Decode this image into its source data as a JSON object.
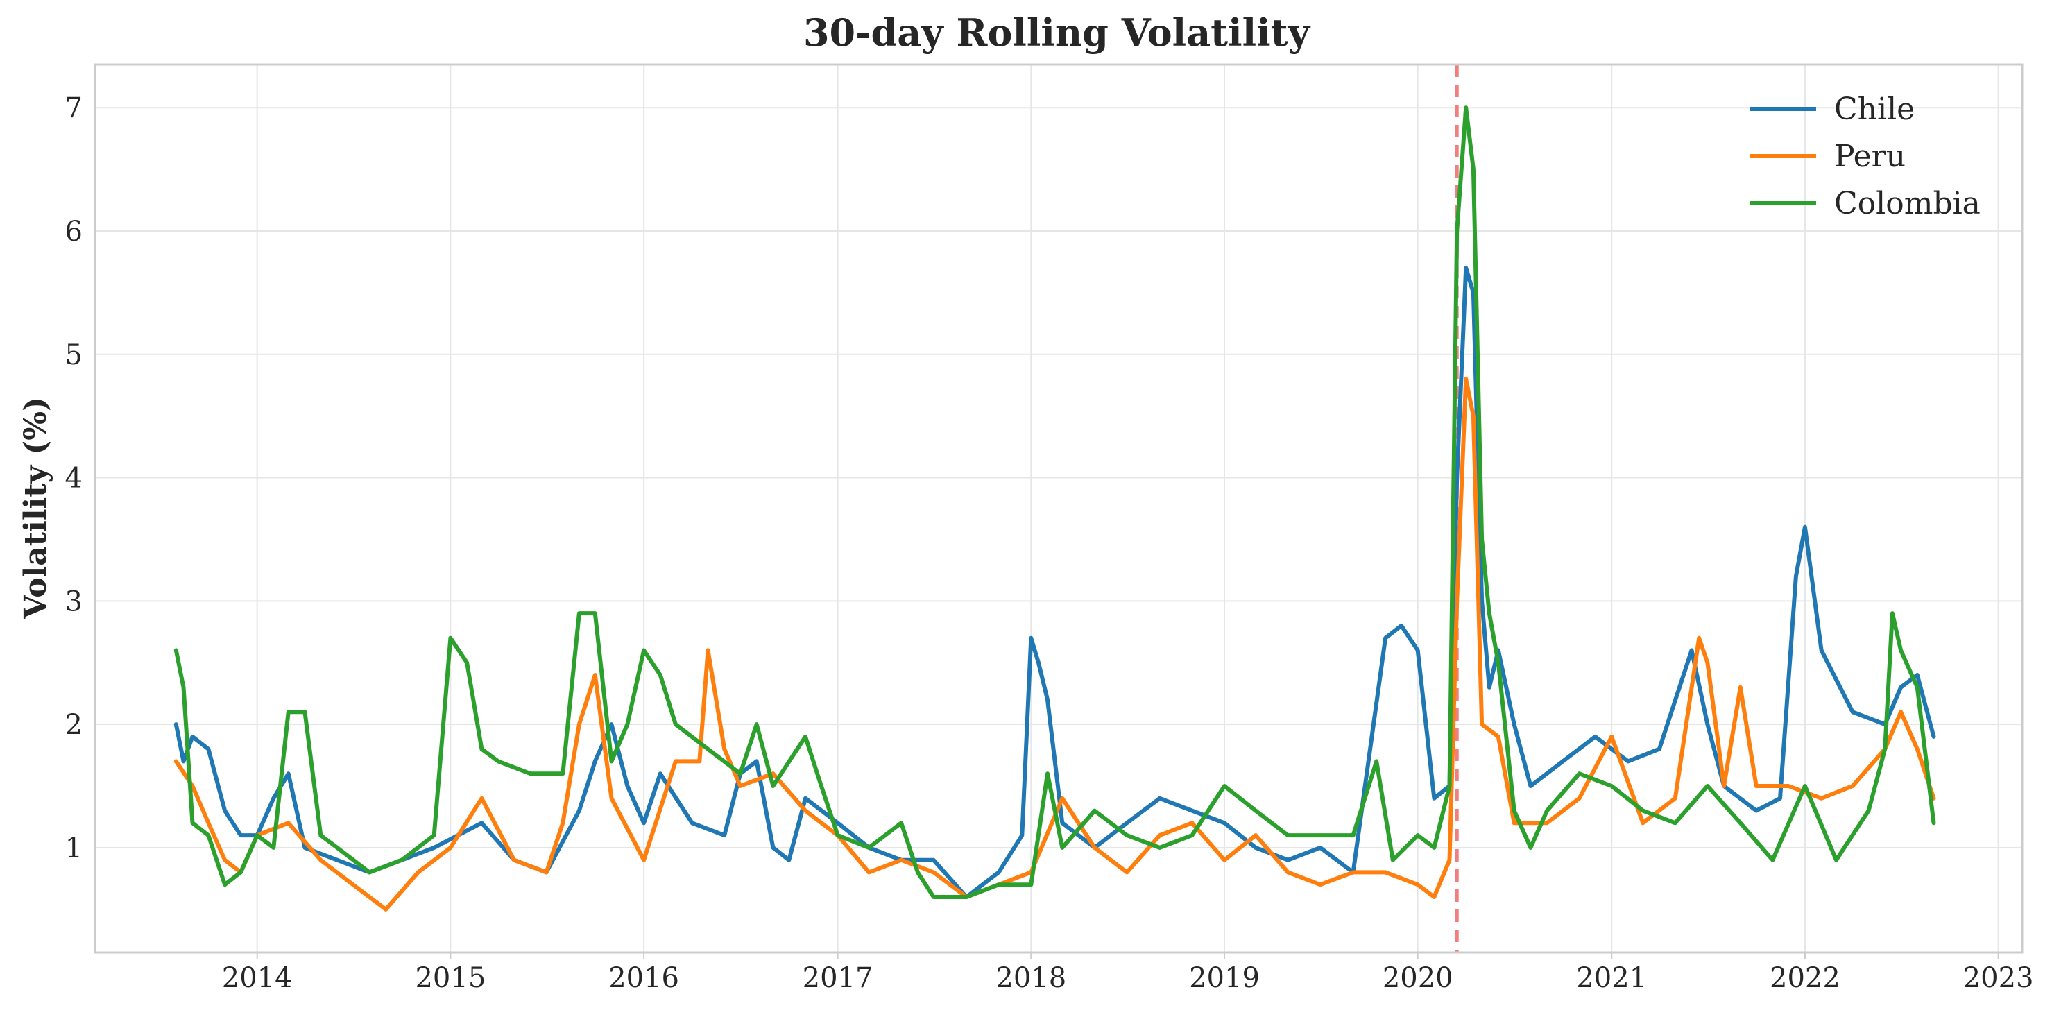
{
  "chart_data": {
    "type": "line",
    "title": "30-day Rolling Volatility",
    "xlabel": "",
    "ylabel": "Volatility (%)",
    "xlim": [
      "2013-03-01",
      "2023-02-15"
    ],
    "ylim": [
      0.15,
      7.35
    ],
    "x_ticks": [
      "2014",
      "2015",
      "2016",
      "2017",
      "2018",
      "2019",
      "2020",
      "2021",
      "2022",
      "2023"
    ],
    "y_ticks": [
      1,
      2,
      3,
      4,
      5,
      6,
      7
    ],
    "grid": true,
    "legend_position": "top-right",
    "annotations": [
      {
        "type": "vertical-dashed-line",
        "x": "2020-03-15",
        "color": "#f08080"
      }
    ],
    "series": [
      {
        "name": "Chile",
        "color": "#1f77b4",
        "x": [
          "2013-08-01",
          "2013-08-15",
          "2013-09-01",
          "2013-10-01",
          "2013-11-01",
          "2013-12-01",
          "2014-01-01",
          "2014-02-01",
          "2014-03-01",
          "2014-04-01",
          "2014-06-01",
          "2014-08-01",
          "2014-10-01",
          "2014-12-01",
          "2015-01-15",
          "2015-03-01",
          "2015-05-01",
          "2015-07-01",
          "2015-09-01",
          "2015-10-01",
          "2015-11-01",
          "2015-12-01",
          "2016-01-01",
          "2016-02-01",
          "2016-04-01",
          "2016-06-01",
          "2016-07-01",
          "2016-08-01",
          "2016-09-01",
          "2016-10-01",
          "2016-11-01",
          "2017-01-01",
          "2017-03-01",
          "2017-05-01",
          "2017-07-01",
          "2017-09-01",
          "2017-11-01",
          "2017-12-15",
          "2018-01-01",
          "2018-01-15",
          "2018-02-01",
          "2018-03-01",
          "2018-05-01",
          "2018-07-01",
          "2018-09-01",
          "2018-11-01",
          "2019-01-01",
          "2019-03-01",
          "2019-05-01",
          "2019-07-01",
          "2019-09-01",
          "2019-11-01",
          "2019-12-01",
          "2020-01-01",
          "2020-02-01",
          "2020-03-01",
          "2020-03-15",
          "2020-04-01",
          "2020-04-15",
          "2020-05-01",
          "2020-05-15",
          "2020-06-01",
          "2020-07-01",
          "2020-08-01",
          "2020-10-01",
          "2020-12-01",
          "2021-02-01",
          "2021-04-01",
          "2021-06-01",
          "2021-07-01",
          "2021-08-01",
          "2021-10-01",
          "2021-11-15",
          "2021-12-15",
          "2022-01-01",
          "2022-02-01",
          "2022-04-01",
          "2022-06-01",
          "2022-07-01",
          "2022-08-01",
          "2022-09-01"
        ],
        "y": [
          2.0,
          1.7,
          1.9,
          1.8,
          1.3,
          1.1,
          1.1,
          1.4,
          1.6,
          1.0,
          0.9,
          0.8,
          0.9,
          1.0,
          1.1,
          1.2,
          0.9,
          0.8,
          1.3,
          1.7,
          2.0,
          1.5,
          1.2,
          1.6,
          1.2,
          1.1,
          1.6,
          1.7,
          1.0,
          0.9,
          1.4,
          1.2,
          1.0,
          0.9,
          0.9,
          0.6,
          0.8,
          1.1,
          2.7,
          2.5,
          2.2,
          1.2,
          1.0,
          1.2,
          1.4,
          1.3,
          1.2,
          1.0,
          0.9,
          1.0,
          0.8,
          2.7,
          2.8,
          2.6,
          1.4,
          1.5,
          4.0,
          5.7,
          5.5,
          3.0,
          2.3,
          2.6,
          2.0,
          1.5,
          1.7,
          1.9,
          1.7,
          1.8,
          2.6,
          2.0,
          1.5,
          1.3,
          1.4,
          3.2,
          3.6,
          2.6,
          2.1,
          2.0,
          2.3,
          2.4,
          1.9
        ]
      },
      {
        "name": "Peru",
        "color": "#ff7f0e",
        "x": [
          "2013-08-01",
          "2013-09-01",
          "2013-10-01",
          "2013-11-01",
          "2013-12-01",
          "2014-01-01",
          "2014-03-01",
          "2014-05-01",
          "2014-07-01",
          "2014-09-01",
          "2014-11-01",
          "2015-01-01",
          "2015-03-01",
          "2015-05-01",
          "2015-07-01",
          "2015-08-01",
          "2015-09-01",
          "2015-10-01",
          "2015-11-01",
          "2016-01-01",
          "2016-03-01",
          "2016-04-15",
          "2016-05-01",
          "2016-06-01",
          "2016-07-01",
          "2016-09-01",
          "2016-11-01",
          "2017-01-01",
          "2017-03-01",
          "2017-05-01",
          "2017-07-01",
          "2017-09-01",
          "2017-11-01",
          "2018-01-01",
          "2018-03-01",
          "2018-05-01",
          "2018-07-01",
          "2018-09-01",
          "2018-11-01",
          "2019-01-01",
          "2019-03-01",
          "2019-05-01",
          "2019-07-01",
          "2019-09-01",
          "2019-11-01",
          "2020-01-01",
          "2020-02-01",
          "2020-03-01",
          "2020-03-15",
          "2020-04-01",
          "2020-04-15",
          "2020-05-01",
          "2020-06-01",
          "2020-07-01",
          "2020-09-01",
          "2020-11-01",
          "2021-01-01",
          "2021-03-01",
          "2021-05-01",
          "2021-06-15",
          "2021-07-01",
          "2021-08-01",
          "2021-09-01",
          "2021-10-01",
          "2021-12-01",
          "2022-02-01",
          "2022-04-01",
          "2022-06-01",
          "2022-07-01",
          "2022-08-01",
          "2022-09-01"
        ],
        "y": [
          1.7,
          1.5,
          1.2,
          0.9,
          0.8,
          1.1,
          1.2,
          0.9,
          0.7,
          0.5,
          0.8,
          1.0,
          1.4,
          0.9,
          0.8,
          1.2,
          2.0,
          2.4,
          1.4,
          0.9,
          1.7,
          1.7,
          2.6,
          1.8,
          1.5,
          1.6,
          1.3,
          1.1,
          0.8,
          0.9,
          0.8,
          0.6,
          0.7,
          0.8,
          1.4,
          1.0,
          0.8,
          1.1,
          1.2,
          0.9,
          1.1,
          0.8,
          0.7,
          0.8,
          0.8,
          0.7,
          0.6,
          0.9,
          3.0,
          4.8,
          4.5,
          2.0,
          1.9,
          1.2,
          1.2,
          1.4,
          1.9,
          1.2,
          1.4,
          2.7,
          2.5,
          1.5,
          2.3,
          1.5,
          1.5,
          1.4,
          1.5,
          1.8,
          2.1,
          1.8,
          1.4
        ]
      },
      {
        "name": "Colombia",
        "color": "#2ca02c",
        "x": [
          "2013-08-01",
          "2013-08-15",
          "2013-09-01",
          "2013-10-01",
          "2013-11-01",
          "2013-12-01",
          "2014-01-01",
          "2014-02-01",
          "2014-03-01",
          "2014-04-01",
          "2014-05-01",
          "2014-06-01",
          "2014-08-01",
          "2014-10-01",
          "2014-12-01",
          "2015-01-01",
          "2015-02-01",
          "2015-03-01",
          "2015-04-01",
          "2015-06-01",
          "2015-08-01",
          "2015-09-01",
          "2015-10-01",
          "2015-11-01",
          "2015-12-01",
          "2016-01-01",
          "2016-02-01",
          "2016-03-01",
          "2016-05-01",
          "2016-07-01",
          "2016-08-01",
          "2016-09-01",
          "2016-11-01",
          "2016-12-01",
          "2017-01-01",
          "2017-03-01",
          "2017-05-01",
          "2017-06-01",
          "2017-07-01",
          "2017-09-01",
          "2017-11-01",
          "2018-01-01",
          "2018-02-01",
          "2018-03-01",
          "2018-05-01",
          "2018-07-01",
          "2018-09-01",
          "2018-11-01",
          "2019-01-01",
          "2019-03-01",
          "2019-05-01",
          "2019-07-01",
          "2019-09-01",
          "2019-10-15",
          "2019-11-15",
          "2020-01-01",
          "2020-02-01",
          "2020-03-01",
          "2020-03-15",
          "2020-04-01",
          "2020-04-15",
          "2020-05-01",
          "2020-05-15",
          "2020-06-01",
          "2020-07-01",
          "2020-08-01",
          "2020-09-01",
          "2020-11-01",
          "2021-01-01",
          "2021-03-01",
          "2021-05-01",
          "2021-07-01",
          "2021-09-01",
          "2021-11-01",
          "2022-01-01",
          "2022-03-01",
          "2022-05-01",
          "2022-06-01",
          "2022-06-15",
          "2022-07-01",
          "2022-08-01",
          "2022-09-01"
        ],
        "y": [
          2.6,
          2.3,
          1.2,
          1.1,
          0.7,
          0.8,
          1.1,
          1.0,
          2.1,
          2.1,
          1.1,
          1.0,
          0.8,
          0.9,
          1.1,
          2.7,
          2.5,
          1.8,
          1.7,
          1.6,
          1.6,
          2.9,
          2.9,
          1.7,
          2.0,
          2.6,
          2.4,
          2.0,
          1.8,
          1.6,
          2.0,
          1.5,
          1.9,
          1.5,
          1.1,
          1.0,
          1.2,
          0.8,
          0.6,
          0.6,
          0.7,
          0.7,
          1.6,
          1.0,
          1.3,
          1.1,
          1.0,
          1.1,
          1.5,
          1.3,
          1.1,
          1.1,
          1.1,
          1.7,
          0.9,
          1.1,
          1.0,
          1.5,
          6.0,
          7.0,
          6.5,
          3.5,
          2.9,
          2.5,
          1.3,
          1.0,
          1.3,
          1.6,
          1.5,
          1.3,
          1.2,
          1.5,
          1.2,
          0.9,
          1.5,
          0.9,
          1.3,
          1.8,
          2.9,
          2.6,
          2.3,
          1.2
        ]
      }
    ]
  }
}
